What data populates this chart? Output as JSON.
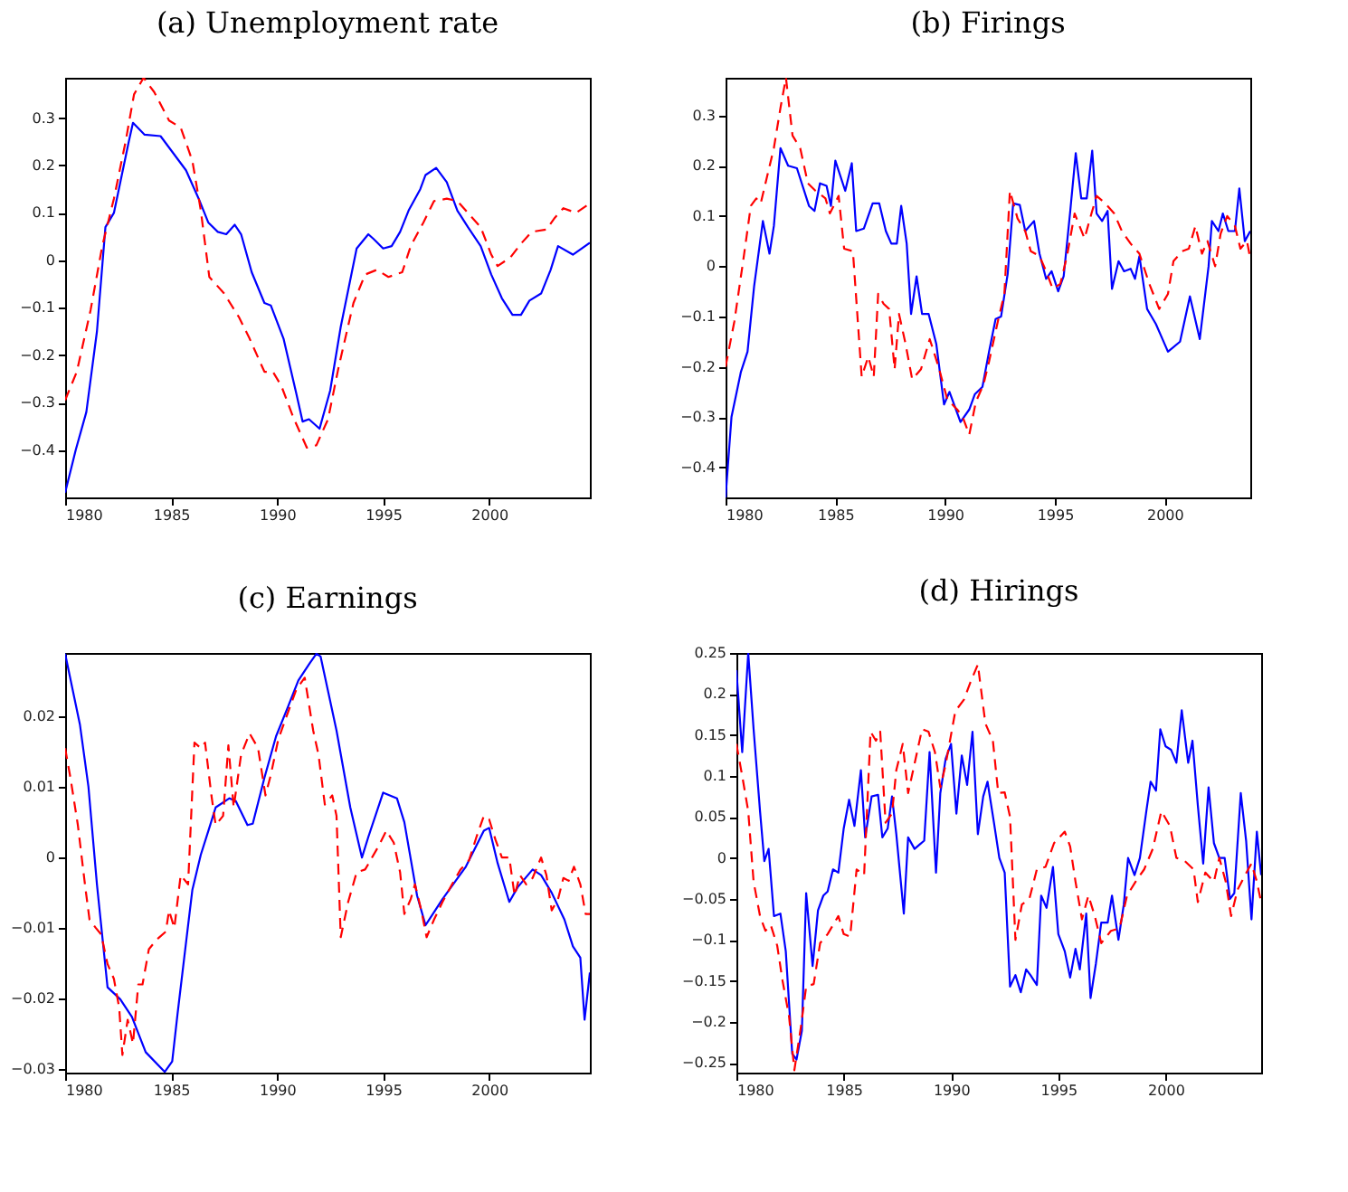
{
  "chart_data": [
    {
      "type": "line",
      "title": "(a) Unemployment rate",
      "xlim": [
        1980,
        2004.75
      ],
      "xticks": [
        1980,
        1985,
        1990,
        1995,
        2000
      ],
      "ylim": [
        -0.5,
        0.385
      ],
      "yticks": [
        -0.4,
        -0.3,
        -0.2,
        -0.1,
        0,
        0.1,
        0.2,
        0.3
      ],
      "grid": false,
      "series": [
        {
          "color": "#0000ff",
          "line_style": "solid",
          "x": [
            1980,
            1980.5,
            1981,
            1981.5,
            1981.9,
            1982.3,
            1983,
            1983.2,
            1983.75,
            1984.5,
            1985.7,
            1986.3,
            1986.75,
            1987.2,
            1987.6,
            1988,
            1988.3,
            1988.8,
            1989.4,
            1989.7,
            1990.3,
            1990.9,
            1991.2,
            1991.5,
            1992,
            1992.5,
            1993,
            1993.75,
            1994.3,
            1994.55,
            1995,
            1995.4,
            1995.8,
            1996.2,
            1996.75,
            1997,
            1997.5,
            1998,
            1998.5,
            1999,
            1999.6,
            2000.1,
            2000.6,
            2001.1,
            2001.5,
            2001.9,
            2002.45,
            2002.9,
            2003.25,
            2003.95,
            2004.75
          ],
          "values": [
            -0.49,
            -0.4,
            -0.32,
            -0.15,
            0.07,
            0.1,
            0.25,
            0.29,
            0.265,
            0.262,
            0.19,
            0.13,
            0.08,
            0.06,
            0.055,
            0.075,
            0.055,
            -0.025,
            -0.09,
            -0.095,
            -0.165,
            -0.28,
            -0.34,
            -0.335,
            -0.355,
            -0.275,
            -0.14,
            0.025,
            0.055,
            0.045,
            0.025,
            0.03,
            0.06,
            0.105,
            0.15,
            0.18,
            0.195,
            0.165,
            0.105,
            0.07,
            0.03,
            -0.03,
            -0.08,
            -0.115,
            -0.115,
            -0.085,
            -0.07,
            -0.02,
            0.03,
            0.012,
            0.037
          ]
        },
        {
          "color": "#ff0000",
          "line_style": "dashed",
          "x": [
            1980,
            1980.55,
            1981.2,
            1981.75,
            1982.3,
            1982.85,
            1983.25,
            1983.7,
            1984.2,
            1984.9,
            1985.45,
            1986,
            1986.4,
            1986.8,
            1987.5,
            1988.2,
            1988.7,
            1989.4,
            1989.8,
            1990.2,
            1990.75,
            1991.4,
            1991.85,
            1992.4,
            1992.9,
            1993.6,
            1994.15,
            1994.7,
            1995.25,
            1995.9,
            1996.3,
            1996.9,
            1997.4,
            1998,
            1998.5,
            1999,
            1999.6,
            2000.1,
            2000.4,
            2001,
            2001.5,
            2002,
            2002.7,
            2003.1,
            2003.5,
            2004.1,
            2004.75
          ],
          "values": [
            -0.295,
            -0.235,
            -0.105,
            0.03,
            0.13,
            0.25,
            0.35,
            0.385,
            0.355,
            0.295,
            0.28,
            0.21,
            0.105,
            -0.035,
            -0.07,
            -0.12,
            -0.165,
            -0.235,
            -0.235,
            -0.265,
            -0.33,
            -0.395,
            -0.39,
            -0.335,
            -0.225,
            -0.09,
            -0.03,
            -0.02,
            -0.035,
            -0.025,
            0.03,
            0.08,
            0.125,
            0.13,
            0.125,
            0.1,
            0.07,
            0.012,
            -0.012,
            0.006,
            0.035,
            0.06,
            0.065,
            0.09,
            0.11,
            0.1,
            0.12
          ]
        }
      ]
    },
    {
      "type": "line",
      "title": "(b) Firings",
      "xlim": [
        1980,
        2003.9
      ],
      "xticks": [
        1980,
        1985,
        1990,
        1995,
        2000
      ],
      "ylim": [
        -0.46,
        0.375
      ],
      "yticks": [
        -0.4,
        -0.3,
        -0.2,
        -0.1,
        0,
        0.1,
        0.2,
        0.3
      ],
      "grid": false,
      "series": [
        {
          "color": "#0000ff",
          "line_style": "solid",
          "x": [
            1980,
            1980.27,
            1980.7,
            1981,
            1981.3,
            1981.7,
            1982,
            1982.2,
            1982.5,
            1982.85,
            1983.25,
            1983.8,
            1984.05,
            1984.3,
            1984.6,
            1984.8,
            1985,
            1985.45,
            1985.75,
            1985.95,
            1986.3,
            1986.7,
            1987,
            1987.3,
            1987.55,
            1987.8,
            1988,
            1988.25,
            1988.45,
            1988.7,
            1988.95,
            1989.25,
            1989.6,
            1989.95,
            1990.2,
            1990.7,
            1991.1,
            1991.35,
            1991.7,
            1992,
            1992.3,
            1992.55,
            1992.85,
            1993.1,
            1993.4,
            1993.65,
            1994.05,
            1994.3,
            1994.6,
            1994.85,
            1995.15,
            1995.4,
            1995.7,
            1995.95,
            1996.2,
            1996.45,
            1996.7,
            1996.9,
            1997.15,
            1997.4,
            1997.6,
            1997.9,
            1998.15,
            1998.45,
            1998.65,
            1998.85,
            1999.2,
            1999.6,
            1999.85,
            2000.15,
            2000.7,
            2001.15,
            2001.6,
            2002,
            2002.15,
            2002.45,
            2002.65,
            2002.9,
            2003.2,
            2003.4,
            2003.65,
            2003.9
          ],
          "values": [
            -0.46,
            -0.3,
            -0.21,
            -0.17,
            -0.04,
            0.09,
            0.025,
            0.08,
            0.235,
            0.2,
            0.195,
            0.12,
            0.11,
            0.165,
            0.16,
            0.12,
            0.21,
            0.15,
            0.205,
            0.07,
            0.075,
            0.125,
            0.125,
            0.07,
            0.045,
            0.045,
            0.12,
            0.045,
            -0.095,
            -0.02,
            -0.095,
            -0.095,
            -0.155,
            -0.275,
            -0.25,
            -0.31,
            -0.285,
            -0.255,
            -0.24,
            -0.17,
            -0.105,
            -0.1,
            -0.015,
            0.125,
            0.122,
            0.07,
            0.09,
            0.025,
            -0.025,
            -0.01,
            -0.05,
            -0.02,
            0.11,
            0.225,
            0.135,
            0.135,
            0.23,
            0.105,
            0.09,
            0.11,
            -0.045,
            0.01,
            -0.01,
            -0.005,
            -0.025,
            0.02,
            -0.085,
            -0.115,
            -0.14,
            -0.17,
            -0.15,
            -0.06,
            -0.145,
            0.0,
            0.09,
            0.07,
            0.105,
            0.07,
            0.07,
            0.155,
            0.05,
            0.07
          ]
        },
        {
          "color": "#ff0000",
          "line_style": "dashed",
          "x": [
            1980,
            1980.4,
            1980.8,
            1981.15,
            1981.4,
            1981.6,
            1981.9,
            1982.2,
            1982.5,
            1982.75,
            1983.05,
            1983.4,
            1983.75,
            1984.1,
            1984.55,
            1984.75,
            1985.15,
            1985.4,
            1985.8,
            1986.2,
            1986.5,
            1986.75,
            1986.95,
            1987.2,
            1987.45,
            1987.7,
            1987.9,
            1988.2,
            1988.5,
            1988.9,
            1989.3,
            1989.7,
            1990.1,
            1990.55,
            1990.8,
            1991.1,
            1991.4,
            1991.75,
            1992,
            1992.4,
            1992.7,
            1992.95,
            1993.3,
            1993.65,
            1993.9,
            1994.3,
            1994.6,
            1994.9,
            1995.25,
            1995.55,
            1995.9,
            1996.35,
            1996.6,
            1996.9,
            1997.3,
            1997.7,
            1998.05,
            1998.45,
            1998.85,
            1999.3,
            1999.75,
            2000.15,
            2000.4,
            2000.8,
            2001.1,
            2001.4,
            2001.7,
            2001.95,
            2002.3,
            2002.55,
            2002.85,
            2003.2,
            2003.45,
            2003.75,
            2003.9
          ],
          "values": [
            -0.2,
            -0.11,
            0.01,
            0.12,
            0.135,
            0.125,
            0.18,
            0.235,
            0.315,
            0.375,
            0.26,
            0.235,
            0.165,
            0.15,
            0.135,
            0.105,
            0.14,
            0.035,
            0.03,
            -0.22,
            -0.18,
            -0.22,
            -0.055,
            -0.075,
            -0.085,
            -0.205,
            -0.095,
            -0.155,
            -0.225,
            -0.205,
            -0.145,
            -0.2,
            -0.265,
            -0.285,
            -0.3,
            -0.335,
            -0.27,
            -0.235,
            -0.19,
            -0.11,
            -0.055,
            0.15,
            0.095,
            0.07,
            0.03,
            0.02,
            -0.01,
            -0.045,
            -0.035,
            0.02,
            0.105,
            0.055,
            0.095,
            0.14,
            0.125,
            0.105,
            0.07,
            0.045,
            0.025,
            -0.035,
            -0.085,
            -0.055,
            0.01,
            0.03,
            0.035,
            0.08,
            0.025,
            0.05,
            0.0,
            0.065,
            0.1,
            0.08,
            0.035,
            0.05,
            0.015
          ]
        }
      ]
    },
    {
      "type": "line",
      "title": "(c) Earnings",
      "xlim": [
        1980,
        2004.75
      ],
      "xticks": [
        1980,
        1985,
        1990,
        1995,
        2000
      ],
      "ylim": [
        -0.0305,
        0.029
      ],
      "yticks": [
        -0.03,
        -0.02,
        -0.01,
        0,
        0.01,
        0.02
      ],
      "grid": false,
      "series": [
        {
          "color": "#0000ff",
          "line_style": "solid",
          "x": [
            1980,
            1980.7,
            1981.1,
            1981.5,
            1982,
            1982.6,
            1983.15,
            1983.8,
            1984.7,
            1985.05,
            1985.3,
            1985.7,
            1986,
            1986.4,
            1986.8,
            1987.1,
            1987.75,
            1988.05,
            1988.6,
            1988.85,
            1989.4,
            1989.95,
            1990.5,
            1991,
            1991.55,
            1991.85,
            1992.05,
            1992.8,
            1993.45,
            1994,
            1994.3,
            1995,
            1995.65,
            1996,
            1996.6,
            1997,
            1997.8,
            1998.9,
            1999.75,
            2000,
            2000.4,
            2000.95,
            2001.35,
            2002.05,
            2002.45,
            2002.95,
            2003.55,
            2003.95,
            2004.3,
            2004.5,
            2004.75
          ],
          "values": [
            0.0289,
            0.0188,
            0.01,
            -0.0038,
            -0.0184,
            -0.0201,
            -0.0226,
            -0.0276,
            -0.0304,
            -0.0289,
            -0.0222,
            -0.0121,
            -0.0046,
            0.0004,
            0.0042,
            0.0071,
            0.0084,
            0.008,
            0.0046,
            0.0048,
            0.0113,
            0.0172,
            0.0213,
            0.0251,
            0.0276,
            0.0289,
            0.0285,
            0.018,
            0.0071,
            0.0,
            0.0029,
            0.0092,
            0.0084,
            0.005,
            -0.0054,
            -0.0096,
            -0.0059,
            -0.0013,
            0.0038,
            0.0042,
            -0.0008,
            -0.0063,
            -0.0042,
            -0.0017,
            -0.0025,
            -0.005,
            -0.0088,
            -0.0126,
            -0.0142,
            -0.023,
            -0.0163
          ]
        },
        {
          "color": "#ff0000",
          "line_style": "dashed",
          "x": [
            1980,
            1980.25,
            1980.6,
            1980.95,
            1981.15,
            1981.45,
            1981.7,
            1982,
            1982.3,
            1982.55,
            1982.7,
            1982.95,
            1983.2,
            1983.45,
            1983.65,
            1983.95,
            1984.3,
            1984.75,
            1984.9,
            1985.15,
            1985.45,
            1985.8,
            1986.1,
            1986.4,
            1986.6,
            1986.9,
            1987.1,
            1987.45,
            1987.7,
            1987.95,
            1988.3,
            1988.7,
            1989.1,
            1989.45,
            1989.7,
            1990.05,
            1990.5,
            1990.9,
            1991.3,
            1991.7,
            1991.95,
            1992.25,
            1992.6,
            1992.8,
            1993,
            1993.35,
            1993.75,
            1994.15,
            1994.4,
            1994.8,
            1995.15,
            1995.5,
            1995.8,
            1996,
            1996.3,
            1996.5,
            1996.8,
            1997.05,
            1997.4,
            1997.8,
            1998.25,
            1998.65,
            1999.05,
            1999.4,
            1999.75,
            2000,
            2000.3,
            2000.6,
            2000.95,
            2001.2,
            2001.45,
            2001.75,
            2002.05,
            2002.45,
            2002.7,
            2002.95,
            2003.25,
            2003.5,
            2003.75,
            2004,
            2004.3,
            2004.55,
            2004.75
          ],
          "values": [
            0.0155,
            0.0113,
            0.0046,
            -0.0042,
            -0.0088,
            -0.01,
            -0.0109,
            -0.0151,
            -0.0172,
            -0.0213,
            -0.028,
            -0.023,
            -0.0264,
            -0.018,
            -0.018,
            -0.013,
            -0.0117,
            -0.0105,
            -0.0075,
            -0.01,
            -0.0025,
            -0.0038,
            0.0163,
            0.0155,
            0.0163,
            0.0088,
            0.0046,
            0.0059,
            0.0159,
            0.0071,
            0.0146,
            0.0176,
            0.0155,
            0.0088,
            0.0117,
            0.0167,
            0.0205,
            0.0238,
            0.0255,
            0.018,
            0.0146,
            0.0075,
            0.0088,
            0.0059,
            -0.0113,
            -0.0063,
            -0.0021,
            -0.0017,
            -0.0004,
            0.0017,
            0.0038,
            0.0021,
            -0.0021,
            -0.008,
            -0.0059,
            -0.0038,
            -0.0075,
            -0.0113,
            -0.0088,
            -0.0063,
            -0.0038,
            -0.0017,
            -0.0004,
            0.0029,
            0.0059,
            0.0054,
            0.0025,
            0.0,
            0.0,
            -0.0054,
            -0.0025,
            -0.0038,
            -0.0029,
            0.0,
            -0.0025,
            -0.0075,
            -0.0059,
            -0.0029,
            -0.0033,
            -0.0013,
            -0.0038,
            -0.008,
            -0.008
          ]
        }
      ]
    },
    {
      "type": "line",
      "title": "(d) Hirings",
      "xlim": [
        1980,
        2004.45
      ],
      "xticks": [
        1980,
        1985,
        1990,
        1995,
        2000
      ],
      "ylim": [
        -0.262,
        0.25
      ],
      "yticks": [
        -0.25,
        -0.2,
        -0.15,
        -0.1,
        -0.05,
        0,
        0.05,
        0.1,
        0.15,
        0.2,
        0.25
      ],
      "grid": false,
      "series": [
        {
          "color": "#0000ff",
          "line_style": "solid",
          "x": [
            1980,
            1980.27,
            1980.55,
            1980.8,
            1981.1,
            1981.3,
            1981.5,
            1981.75,
            1982.05,
            1982.3,
            1982.6,
            1982.8,
            1983.05,
            1983.25,
            1983.55,
            1983.8,
            1984.05,
            1984.25,
            1984.5,
            1984.75,
            1985,
            1985.25,
            1985.5,
            1985.8,
            1986,
            1986.3,
            1986.6,
            1986.8,
            1987.05,
            1987.25,
            1987.45,
            1987.8,
            1988,
            1988.3,
            1988.75,
            1989,
            1989.3,
            1989.5,
            1989.75,
            1990,
            1990.25,
            1990.5,
            1990.75,
            1991,
            1991.25,
            1991.5,
            1991.7,
            1992,
            1992.25,
            1992.5,
            1992.75,
            1993,
            1993.25,
            1993.5,
            1993.7,
            1994,
            1994.2,
            1994.45,
            1994.75,
            1995,
            1995.3,
            1995.55,
            1995.8,
            1996,
            1996.3,
            1996.5,
            1996.75,
            1997,
            1997.3,
            1997.5,
            1997.8,
            1998.05,
            1998.25,
            1998.55,
            1998.8,
            1999.1,
            1999.3,
            1999.55,
            1999.75,
            2000,
            2000.25,
            2000.5,
            2000.75,
            2001.05,
            2001.25,
            2001.5,
            2001.75,
            2002,
            2002.25,
            2002.5,
            2002.75,
            2003,
            2003.2,
            2003.5,
            2003.75,
            2004,
            2004.25,
            2004.45
          ],
          "values": [
            0.229,
            0.129,
            0.25,
            0.157,
            0.057,
            -0.004,
            0.011,
            -0.071,
            -0.068,
            -0.114,
            -0.239,
            -0.246,
            -0.211,
            -0.043,
            -0.132,
            -0.064,
            -0.046,
            -0.041,
            -0.014,
            -0.018,
            0.036,
            0.071,
            0.039,
            0.107,
            0.025,
            0.075,
            0.077,
            0.025,
            0.036,
            0.075,
            0.029,
            -0.068,
            0.025,
            0.011,
            0.021,
            0.129,
            -0.018,
            0.079,
            0.121,
            0.139,
            0.054,
            0.125,
            0.089,
            0.154,
            0.029,
            0.075,
            0.093,
            0.043,
            0.0,
            -0.018,
            -0.157,
            -0.143,
            -0.164,
            -0.136,
            -0.143,
            -0.155,
            -0.046,
            -0.061,
            -0.011,
            -0.093,
            -0.114,
            -0.146,
            -0.111,
            -0.136,
            -0.068,
            -0.171,
            -0.129,
            -0.079,
            -0.079,
            -0.046,
            -0.1,
            -0.057,
            0.0,
            -0.021,
            0.0,
            0.057,
            0.093,
            0.082,
            0.157,
            0.136,
            0.132,
            0.116,
            0.18,
            0.116,
            0.143,
            0.064,
            -0.007,
            0.086,
            0.018,
            0.0,
            0.0,
            -0.05,
            -0.043,
            0.079,
            0.021,
            -0.075,
            0.032,
            -0.021
          ]
        },
        {
          "color": "#ff0000",
          "line_style": "dashed",
          "x": [
            1980,
            1980.27,
            1980.55,
            1980.8,
            1981.1,
            1981.35,
            1981.6,
            1981.9,
            1982.15,
            1982.45,
            1982.7,
            1983,
            1983.25,
            1983.6,
            1983.9,
            1984.25,
            1984.75,
            1985,
            1985.3,
            1985.6,
            1985.95,
            1986.25,
            1986.5,
            1986.7,
            1986.95,
            1987.25,
            1987.45,
            1987.75,
            1988,
            1988.35,
            1988.65,
            1988.95,
            1989.25,
            1989.5,
            1989.75,
            1990.2,
            1990.6,
            1990.9,
            1991.25,
            1991.6,
            1991.95,
            1992.2,
            1992.5,
            1992.75,
            1993,
            1993.3,
            1993.65,
            1994,
            1994.4,
            1994.8,
            1995.3,
            1995.55,
            1995.8,
            1996.1,
            1996.4,
            1996.7,
            1997,
            1997.45,
            1997.85,
            1998.2,
            1998.6,
            1999,
            1999.4,
            1999.8,
            2000.2,
            2000.5,
            2000.9,
            2001.3,
            2001.5,
            2001.85,
            2002.25,
            2002.5,
            2002.8,
            2003.05,
            2003.35,
            2003.7,
            2004,
            2004.25,
            2004.45
          ],
          "values": [
            0.139,
            0.1,
            0.057,
            -0.029,
            -0.071,
            -0.089,
            -0.082,
            -0.107,
            -0.15,
            -0.193,
            -0.259,
            -0.207,
            -0.157,
            -0.154,
            -0.104,
            -0.093,
            -0.071,
            -0.093,
            -0.096,
            -0.014,
            -0.021,
            0.154,
            0.143,
            0.154,
            0.043,
            0.054,
            0.107,
            0.139,
            0.079,
            0.121,
            0.157,
            0.154,
            0.129,
            0.086,
            0.114,
            0.179,
            0.193,
            0.214,
            0.236,
            0.164,
            0.143,
            0.079,
            0.08,
            0.05,
            -0.1,
            -0.057,
            -0.05,
            -0.014,
            -0.011,
            0.018,
            0.032,
            0.014,
            -0.029,
            -0.075,
            -0.046,
            -0.071,
            -0.104,
            -0.089,
            -0.086,
            -0.046,
            -0.029,
            -0.014,
            0.011,
            0.057,
            0.039,
            0.0,
            -0.004,
            -0.014,
            -0.054,
            -0.018,
            -0.029,
            0.0,
            -0.029,
            -0.071,
            -0.039,
            -0.021,
            -0.007,
            -0.029,
            -0.054
          ]
        }
      ]
    }
  ]
}
